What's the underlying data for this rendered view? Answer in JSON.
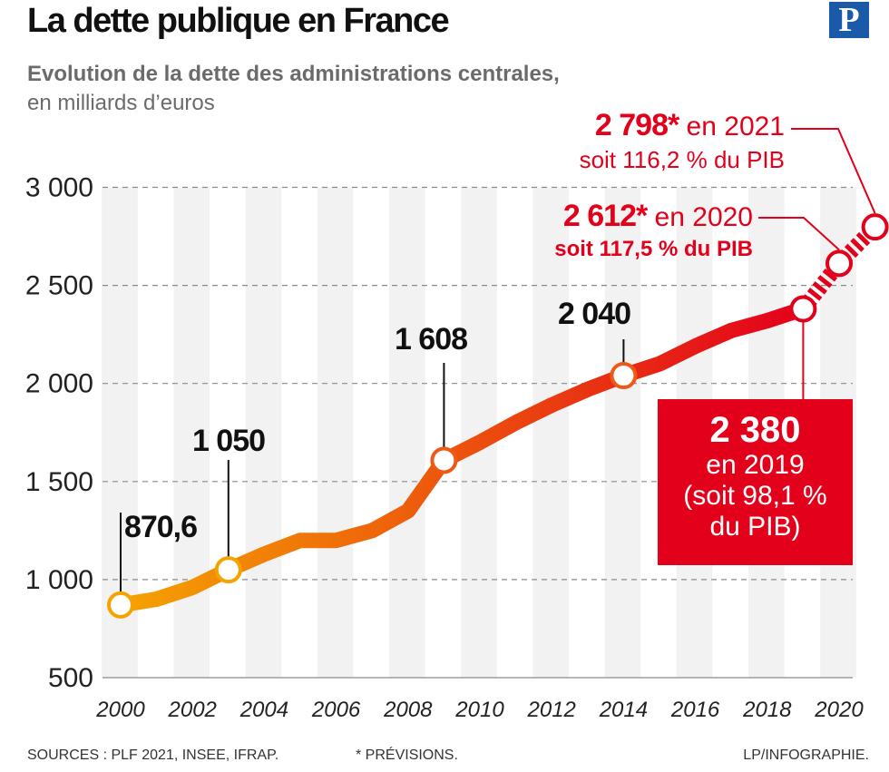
{
  "header": {
    "title": "La dette publique en France",
    "subtitle_line1": "Evolution de la dette des administrations centrales,",
    "subtitle_line2": "en milliards d’euros",
    "logo_letter": "P"
  },
  "footer": {
    "sources": "SOURCES : PLF 2021, INSEE, IFRAP.",
    "note": "* PRÉVISIONS.",
    "credit": "LP/INFOGRAPHIE."
  },
  "colors": {
    "start": "#f5a300",
    "end": "#e3001b",
    "highlight": "#e3001b",
    "grid_band": "#f2f2f2"
  },
  "chart_data": {
    "type": "line",
    "title": "La dette publique en France",
    "subtitle": "Evolution de la dette des administrations centrales, en milliards d’euros",
    "x": [
      2000,
      2001,
      2002,
      2003,
      2004,
      2005,
      2006,
      2007,
      2008,
      2009,
      2010,
      2011,
      2012,
      2013,
      2014,
      2015,
      2016,
      2017,
      2018,
      2019,
      2020,
      2021
    ],
    "values": [
      870.6,
      900,
      960,
      1050,
      1130,
      1200,
      1200,
      1250,
      1350,
      1608,
      1700,
      1800,
      1890,
      1970,
      2040,
      2100,
      2190,
      2270,
      2320,
      2380,
      2612,
      2798
    ],
    "forecast_from": 2019,
    "ylim": [
      500,
      3000
    ],
    "yticks": [
      500,
      1000,
      1500,
      2000,
      2500,
      3000
    ],
    "ytick_labels": [
      "500",
      "1 000",
      "1 500",
      "2 000",
      "2 500",
      "3 000"
    ],
    "xticks": [
      2000,
      2002,
      2004,
      2006,
      2008,
      2010,
      2012,
      2014,
      2016,
      2018,
      2020
    ],
    "xtick_labels": [
      "2000",
      "2002",
      "2004",
      "2006",
      "2008",
      "2010",
      "2012",
      "2014",
      "2016",
      "2018",
      "2020"
    ],
    "markers": [
      {
        "year": 2000,
        "value": 870.6,
        "label": "870,6"
      },
      {
        "year": 2003,
        "value": 1050,
        "label": "1 050"
      },
      {
        "year": 2009,
        "value": 1608,
        "label": "1 608"
      },
      {
        "year": 2014,
        "value": 2040,
        "label": "2 040"
      },
      {
        "year": 2019,
        "value": 2380,
        "label": "2 380"
      },
      {
        "year": 2020,
        "value": 2612,
        "label": "2 612*"
      },
      {
        "year": 2021,
        "value": 2798,
        "label": "2 798*"
      }
    ],
    "annotations": {
      "y2021": {
        "value": "2 798*",
        "text": " en 2021",
        "sub": "soit 116,2 % du PIB"
      },
      "y2020": {
        "value": "2 612*",
        "text": " en 2020",
        "sub": "soit 117,5 % du PIB"
      },
      "y2019": {
        "value": "2 380",
        "line2": "en 2019",
        "line3": "(soit 98,1 %",
        "line4": "du PIB)"
      }
    }
  }
}
